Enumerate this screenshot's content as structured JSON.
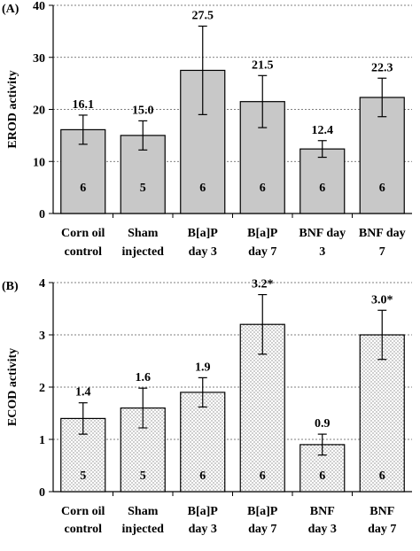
{
  "chart_data": [
    {
      "type": "bar",
      "panel_label": "(A)",
      "title": "",
      "xlabel": "",
      "ylabel": "EROD activity",
      "ylim": [
        0,
        40
      ],
      "yticks": [
        "0",
        "10",
        "20",
        "30",
        "40"
      ],
      "grid": true,
      "fill": "gray",
      "categories": [
        [
          "Corn oil",
          "control"
        ],
        [
          "Sham",
          "injected"
        ],
        [
          "B[a]P",
          "day 3"
        ],
        [
          "B[a]P",
          "day 7"
        ],
        [
          "BNF day",
          "3"
        ],
        [
          "BNF day",
          "7"
        ]
      ],
      "values": [
        16.1,
        15.0,
        27.5,
        21.5,
        12.4,
        22.3
      ],
      "errors": [
        2.8,
        2.8,
        8.5,
        5.0,
        1.6,
        3.7
      ],
      "value_labels": [
        "16.1",
        "15.0",
        "27.5",
        "21.5",
        "12.4",
        "22.3"
      ],
      "n_labels": [
        "6",
        "5",
        "6",
        "6",
        "6",
        "6"
      ]
    },
    {
      "type": "bar",
      "panel_label": "(B)",
      "title": "",
      "xlabel": "",
      "ylabel": "ECOD activity",
      "ylim": [
        0,
        4
      ],
      "yticks": [
        "0",
        "1",
        "2",
        "3",
        "4"
      ],
      "grid": true,
      "fill": "dotted",
      "categories": [
        [
          "Corn oil",
          "control"
        ],
        [
          "Sham",
          "injected"
        ],
        [
          "B[a]P",
          "day 3"
        ],
        [
          "B[a]P",
          "day 7"
        ],
        [
          "BNF",
          "day 3"
        ],
        [
          "BNF",
          "day 7"
        ]
      ],
      "values": [
        1.4,
        1.6,
        1.9,
        3.2,
        0.9,
        3.0
      ],
      "errors": [
        0.3,
        0.38,
        0.28,
        0.57,
        0.2,
        0.47
      ],
      "value_labels": [
        "1.4",
        "1.6",
        "1.9",
        "3.2*",
        "0.9",
        "3.0*"
      ],
      "n_labels": [
        "5",
        "5",
        "6",
        "6",
        "6",
        "6"
      ]
    }
  ]
}
